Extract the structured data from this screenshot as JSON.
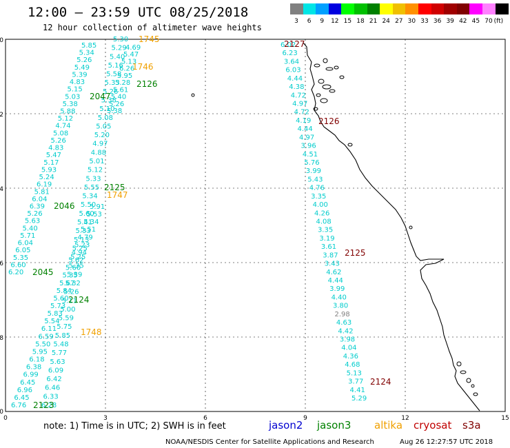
{
  "title": "12:00 – 23:59 UTC 08/25/2018",
  "subtitle": "12 hour collection of altimeter wave heights",
  "legend": {
    "labels": [
      "3",
      "6",
      "9",
      "12",
      "15",
      "18",
      "21",
      "24",
      "27",
      "30",
      "33",
      "36",
      "39",
      "42",
      "45",
      "70",
      "(ft)"
    ],
    "colors": [
      "#808080",
      "#00e5e5",
      "#00a0ff",
      "#0000e0",
      "#00ff00",
      "#00c000",
      "#008000",
      "#ffff00",
      "#f0c000",
      "#ff9000",
      "#ff0000",
      "#d00000",
      "#a00000",
      "#800000",
      "#ff00ff",
      "#ff80ff",
      "#000000"
    ]
  },
  "axes": {
    "x_ticks": [
      "0",
      "3",
      "6",
      "9",
      "12",
      "15"
    ],
    "y_ticks": [
      "0",
      "-2",
      "-4",
      "-6",
      "-8",
      "-10"
    ]
  },
  "footer": {
    "note": "note:  1) Time is in UTC; 2) SWH is in feet",
    "satellites": [
      {
        "name": "jason2",
        "color": "#0000d0"
      },
      {
        "name": "jason3",
        "color": "#008000"
      },
      {
        "name": "altika",
        "color": "#f0a000"
      },
      {
        "name": "cryosat",
        "color": "#c00000"
      },
      {
        "name": "s3a",
        "color": "#800000"
      }
    ],
    "credit_left": "NOAA/NESDIS Center for Satellite Applications and Research",
    "credit_right": "Aug 26 12:27:57 UTC 2018"
  },
  "tracks": [
    {
      "id": "track-a",
      "values": [
        "5.85",
        "5.34",
        "5.26",
        "5.49",
        "5.39",
        "4.83",
        "5.15",
        "5.03",
        "5.38",
        "5.88",
        "5.12",
        "4.74",
        "5.08",
        "5.26",
        "4.83",
        "5.47",
        "5.17",
        "5.93",
        "5.24",
        "6.19",
        "5.81",
        "6.04",
        "6.39",
        "5.26",
        "5.63",
        "5.40",
        "5.71",
        "6.04",
        "6.05",
        "5.35",
        "6.60",
        "6.20"
      ]
    },
    {
      "id": "track-b",
      "values": [
        "5.30",
        "5.29",
        "5.40",
        "5.16",
        "5.58",
        "5.33",
        "5.26",
        "5.38",
        "5.10",
        "5.08",
        "5.05",
        "5.20",
        "4.97",
        "4.88",
        "5.01",
        "5.12",
        "5.33",
        "5.55",
        "5.34",
        "5.50",
        "5.60",
        "5.41",
        "5.33",
        "5.13",
        "5.25",
        "5.25",
        "5.35",
        "5.39",
        "5.32",
        "5.26",
        "5.11",
        "5.00",
        "5.59",
        "5.75",
        "5.85",
        "5.48",
        "5.77",
        "5.63",
        "6.09",
        "6.42",
        "6.46",
        "6.33",
        "6.28"
      ]
    },
    {
      "id": "track-c",
      "values": [
        "5.91",
        "5.53",
        "5.34",
        "5.51",
        "4.79",
        "5.23",
        "4.94",
        "5.62",
        "5.60",
        "5.35",
        "5.67",
        "5.84",
        "5.60",
        "5.73",
        "5.83",
        "5.54",
        "6.11",
        "6.59",
        "5.50",
        "5.95",
        "6.18",
        "6.38",
        "6.99",
        "6.45",
        "6.96",
        "6.45",
        "6.76"
      ]
    },
    {
      "id": "track-d",
      "values": [
        "4.69",
        "5.47",
        "5.13",
        "6.26",
        "5.95",
        "5.28",
        "5.61",
        "5.40",
        "5.26",
        "5.38"
      ]
    },
    {
      "id": "track-e",
      "values": [
        "6.02",
        "6.23",
        "3.64",
        "6.03",
        "4.44",
        "4.38",
        "4.72",
        "4.97",
        "4.72",
        "4.19",
        "4.44",
        "4.97",
        "3.96",
        "4.51",
        "5.76",
        "3.99",
        "5.43",
        "4.76",
        "3.35",
        "4.00",
        "4.26",
        "4.08",
        "3.35",
        "3.19",
        "3.61",
        "3.87",
        "3.43",
        "4.62",
        "4.44",
        "3.99",
        "4.40",
        "3.80",
        "2.98",
        "4.63",
        "4.42",
        "3.98",
        "4.04",
        "4.36",
        "4.68",
        "5.13",
        "3.77",
        "4.41",
        "5.29"
      ]
    }
  ],
  "time_labels": [
    {
      "text": "1745",
      "sat": "altika"
    },
    {
      "text": "1746",
      "sat": "altika"
    },
    {
      "text": "2126",
      "sat": "jason3"
    },
    {
      "text": "2047",
      "sat": "jason3"
    },
    {
      "text": "2125",
      "sat": "jason3"
    },
    {
      "text": "1747",
      "sat": "altika"
    },
    {
      "text": "2046",
      "sat": "jason3"
    },
    {
      "text": "2045",
      "sat": "jason3"
    },
    {
      "text": "2124",
      "sat": "jason3"
    },
    {
      "text": "1748",
      "sat": "altika"
    },
    {
      "text": "2123",
      "sat": "jason3"
    },
    {
      "text": "2127",
      "sat": "s3a"
    },
    {
      "text": "2126",
      "sat": "s3a"
    },
    {
      "text": "2125",
      "sat": "s3a"
    },
    {
      "text": "2124",
      "sat": "s3a"
    }
  ]
}
